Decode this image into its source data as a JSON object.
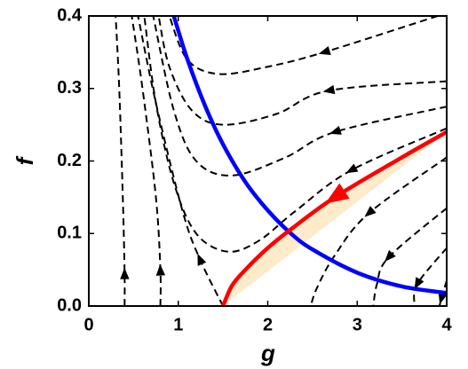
{
  "chart_data": {
    "type": "line",
    "xlabel": "g",
    "ylabel": "f",
    "xlim": [
      0,
      4
    ],
    "ylim": [
      0,
      0.4
    ],
    "xticks": [
      0,
      1,
      2,
      3,
      4
    ],
    "yticks": [
      {
        "value": 0,
        "label": "0.0"
      },
      0.1,
      0.2,
      0.3,
      0.4
    ],
    "series": [
      {
        "color": "#000000",
        "style": "dashed",
        "x": [
          0.4,
          0.4,
          0.38,
          0.34,
          0.3
        ],
        "values": [
          0,
          0.045,
          0.15,
          0.3,
          0.4
        ]
      },
      {
        "color": "#000000",
        "style": "dashed",
        "x": [
          0.8,
          0.8,
          0.75,
          0.6,
          0.48
        ],
        "values": [
          0,
          0.05,
          0.15,
          0.3,
          0.4
        ]
      },
      {
        "color": "#000000",
        "style": "dashed",
        "x": [
          1.5,
          1.24,
          1.05,
          0.75,
          0.55
        ],
        "values": [
          0,
          0.065,
          0.13,
          0.28,
          0.4
        ]
      },
      {
        "color": "#000000",
        "style": "dashed",
        "x": [
          4,
          2.93,
          2.3,
          1.9,
          1.55,
          1.2,
          0.95,
          0.75,
          0.62
        ],
        "values": [
          0.245,
          0.187,
          0.13,
          0.09,
          0.075,
          0.1,
          0.17,
          0.28,
          0.4
        ]
      },
      {
        "color": "#000000",
        "style": "dashed",
        "x": [
          4,
          2.75,
          2.2,
          1.6,
          1.2,
          0.95,
          0.72
        ],
        "values": [
          0.275,
          0.24,
          0.205,
          0.18,
          0.2,
          0.27,
          0.4
        ]
      },
      {
        "color": "#000000",
        "style": "dashed",
        "x": [
          4,
          2.68,
          2.1,
          1.5,
          1.15,
          0.9,
          0.78
        ],
        "values": [
          0.31,
          0.297,
          0.265,
          0.25,
          0.27,
          0.33,
          0.4
        ]
      },
      {
        "color": "#000000",
        "style": "dashed",
        "x": [
          3.9,
          2.63,
          2.0,
          1.45,
          1.1,
          0.9
        ],
        "values": [
          0.4,
          0.35,
          0.33,
          0.32,
          0.34,
          0.4
        ]
      },
      {
        "color": "#000000",
        "style": "dashed",
        "x": [
          4,
          3.13,
          2.75,
          2.55,
          2.48
        ],
        "values": [
          0.205,
          0.128,
          0.07,
          0.025,
          0
        ]
      },
      {
        "color": "#000000",
        "style": "dashed",
        "x": [
          4,
          3.35,
          3.22,
          3.18
        ],
        "values": [
          0.135,
          0.067,
          0.03,
          0
        ]
      },
      {
        "color": "#000000",
        "style": "dashed",
        "x": [
          4,
          3.67,
          3.64
        ],
        "values": [
          0.08,
          0.03,
          0
        ]
      },
      {
        "color": "#000000",
        "style": "dashed",
        "x": [
          4,
          3.94,
          3.92
        ],
        "values": [
          0.035,
          0.01,
          0
        ]
      },
      {
        "color": "#0000ff",
        "style": "solid",
        "x": [
          0.95,
          1.1,
          1.3,
          1.5,
          1.75,
          2.0,
          2.25,
          2.5,
          3.0,
          3.5,
          4.0
        ],
        "values": [
          0.4,
          0.341,
          0.276,
          0.223,
          0.171,
          0.132,
          0.101,
          0.078,
          0.046,
          0.027,
          0.018
        ]
      },
      {
        "color": "#ff0000",
        "style": "solid",
        "fill": "#fdebc9",
        "x": [
          4,
          3.5,
          2.75,
          2.25,
          2.0,
          1.75,
          1.6,
          1.5
        ],
        "values": [
          0.24,
          0.205,
          0.15,
          0.105,
          0.08,
          0.05,
          0.028,
          0
        ]
      }
    ]
  }
}
